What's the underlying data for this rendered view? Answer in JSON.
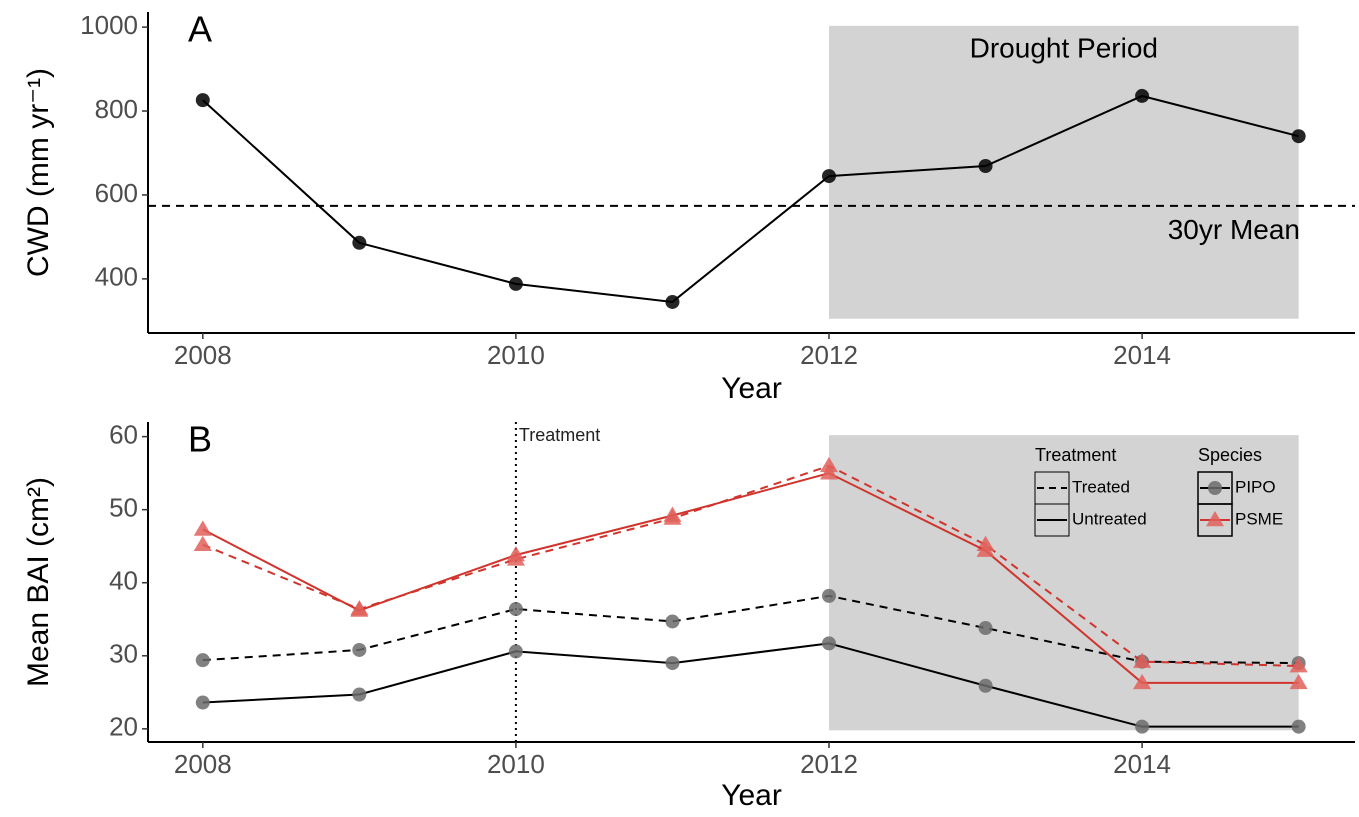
{
  "chart_data": [
    {
      "type": "line",
      "panel": "A",
      "x": [
        2008,
        2009,
        2010,
        2011,
        2012,
        2013,
        2014,
        2015
      ],
      "values": [
        826,
        486,
        388,
        345,
        645,
        669,
        836,
        740
      ],
      "color": "#000000",
      "xlim": [
        2007.65,
        2015.36
      ],
      "xticks": [
        2008,
        2010,
        2012,
        2014
      ],
      "ylim": [
        271,
        1036
      ],
      "yticks": [
        400,
        600,
        800,
        1000
      ],
      "x_label": "Year",
      "y_label": "CWD (mm yr⁻¹)",
      "shade": {
        "label": "Drought Period",
        "x": [
          2012,
          2015
        ],
        "y": [
          305,
          1003
        ],
        "color": "#d3d3d3"
      },
      "hline": {
        "value": 574,
        "label": "30yr Mean"
      }
    },
    {
      "type": "line",
      "panel": "B",
      "x": [
        2008,
        2009,
        2010,
        2011,
        2012,
        2013,
        2014,
        2015
      ],
      "groups": [
        {
          "name": "PIPO",
          "color": "#000000",
          "marker_color": "#6b6b6b",
          "marker": "circle",
          "series": [
            {
              "name": "Treated",
              "dashed": true,
              "values": [
                29.4,
                30.8,
                36.4,
                34.7,
                38.2,
                33.8,
                29.2,
                29.0
              ]
            },
            {
              "name": "Untreated",
              "dashed": false,
              "values": [
                23.6,
                24.7,
                30.6,
                29.0,
                31.7,
                25.9,
                20.3,
                20.3
              ]
            }
          ]
        },
        {
          "name": "PSME",
          "color": "#d0342c",
          "marker_color": "#e0605a",
          "marker": "triangle",
          "series": [
            {
              "name": "Treated",
              "dashed": true,
              "values": [
                45.2,
                36.4,
                43.2,
                48.8,
                56.0,
                45.2,
                29.2,
                28.6
              ]
            },
            {
              "name": "Untreated",
              "dashed": false,
              "values": [
                47.3,
                36.2,
                43.8,
                49.2,
                55.0,
                44.4,
                26.3,
                26.3
              ]
            }
          ]
        }
      ],
      "legend_titles": {
        "treatment": "Treatment",
        "species": "Species"
      },
      "xlim": [
        2007.65,
        2015.36
      ],
      "xticks": [
        2008,
        2010,
        2012,
        2014
      ],
      "ylim": [
        18.2,
        62
      ],
      "yticks": [
        20,
        30,
        40,
        50,
        60
      ],
      "x_label": "Year",
      "y_label": "Mean BAI (cm²)",
      "shade": {
        "x": [
          2012,
          2015
        ],
        "y": [
          19.8,
          60.2
        ],
        "color": "#d3d3d3"
      },
      "vline": {
        "value": 2010,
        "label": "Treatment"
      }
    }
  ]
}
